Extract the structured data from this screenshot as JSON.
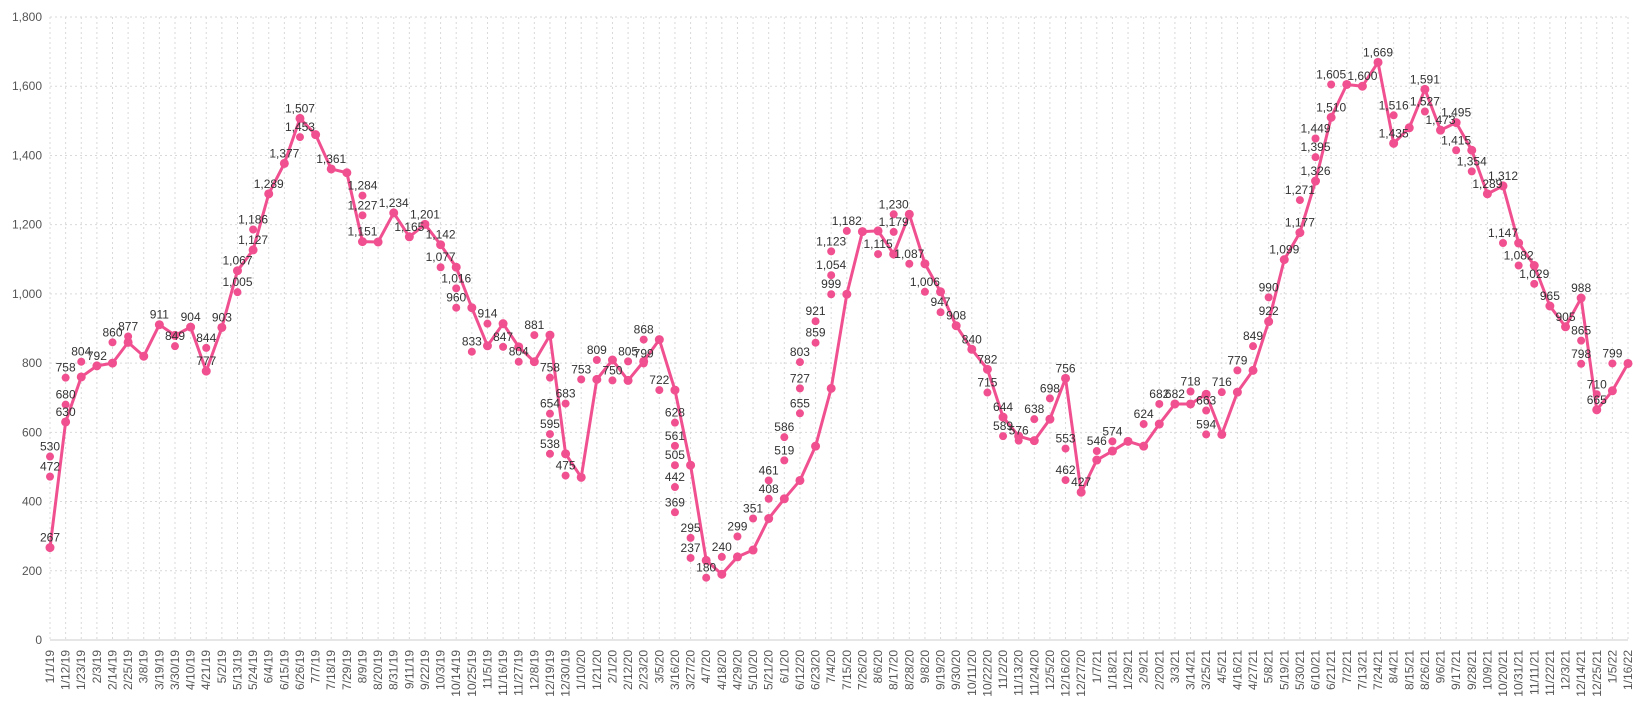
{
  "colors": {
    "series": "#f0508f",
    "grid": "#d9d9d9",
    "axis": "#cccccc",
    "text": "#444444"
  },
  "chart_data": {
    "type": "line",
    "title": "",
    "xlabel": "",
    "ylabel": "",
    "ylim": [
      0,
      1800
    ],
    "yticks": [
      0,
      200,
      400,
      600,
      800,
      1000,
      1200,
      1400,
      1600,
      1800
    ],
    "grid": true,
    "x": [
      "1/1/19",
      "1/12/19",
      "1/23/19",
      "2/3/19",
      "2/14/19",
      "2/25/19",
      "3/8/19",
      "3/19/19",
      "3/30/19",
      "4/10/19",
      "4/21/19",
      "5/2/19",
      "5/13/19",
      "5/24/19",
      "6/4/19",
      "6/15/19",
      "6/26/19",
      "7/7/19",
      "7/18/19",
      "7/29/19",
      "8/9/19",
      "8/20/19",
      "8/31/19",
      "9/11/19",
      "9/22/19",
      "10/3/19",
      "10/14/19",
      "10/25/19",
      "11/5/19",
      "11/16/19",
      "11/27/19",
      "12/8/19",
      "12/19/19",
      "12/30/19",
      "1/10/20",
      "1/21/20",
      "2/1/20",
      "2/12/20",
      "2/23/20",
      "3/5/20",
      "3/16/20",
      "3/27/20",
      "4/7/20",
      "4/18/20",
      "4/29/20",
      "5/10/20",
      "5/21/20",
      "6/1/20",
      "6/12/20",
      "6/23/20",
      "7/4/20",
      "7/15/20",
      "7/26/20",
      "8/6/20",
      "8/17/20",
      "8/28/20",
      "9/8/20",
      "9/19/20",
      "9/30/20",
      "10/11/20",
      "10/22/20",
      "11/2/20",
      "11/13/20",
      "11/24/20",
      "12/5/20",
      "12/16/20",
      "12/27/20",
      "1/7/21",
      "1/18/21",
      "1/29/21",
      "2/9/21",
      "2/20/21",
      "3/3/21",
      "3/14/21",
      "3/25/21",
      "4/5/21",
      "4/16/21",
      "4/27/21",
      "5/8/21",
      "5/19/21",
      "5/30/21",
      "6/10/21",
      "6/21/21",
      "7/2/21",
      "7/13/21",
      "7/24/21",
      "8/4/21",
      "8/15/21",
      "8/26/21",
      "9/6/21",
      "9/17/21",
      "9/28/21",
      "10/9/21",
      "10/20/21",
      "10/31/21",
      "11/11/21",
      "11/22/21",
      "12/3/21",
      "12/14/21",
      "12/25/21",
      "1/5/22",
      "1/16/22"
    ],
    "series": [
      {
        "values": [
          267,
          630,
          760,
          792,
          800,
          860,
          820,
          911,
          880,
          904,
          777,
          903,
          1067,
          1127,
          1289,
          1377,
          1507,
          1460,
          1361,
          1350,
          1151,
          1150,
          1234,
          1165,
          1201,
          1142,
          1077,
          960,
          850,
          914,
          847,
          804,
          881,
          538,
          470,
          753,
          809,
          750,
          805,
          868,
          722,
          505,
          230,
          190,
          240,
          260,
          351,
          408,
          461,
          560,
          727,
          999,
          1180,
          1182,
          1115,
          1230,
          1087,
          1006,
          908,
          840,
          782,
          644,
          589,
          576,
          638,
          756,
          427,
          520,
          546,
          574,
          560,
          624,
          682,
          682,
          710,
          594,
          716,
          779,
          920,
          1099,
          1177,
          1326,
          1510,
          1605,
          1600,
          1669,
          1435,
          1480,
          1591,
          1473,
          1495,
          1415,
          1289,
          1312,
          1147,
          1082,
          965,
          905,
          988,
          665,
          720,
          799
        ]
      }
    ],
    "data_labels": [
      {
        "x": "1/1/19",
        "y": 267,
        "text": "267"
      },
      {
        "x": "1/1/19",
        "y": 472,
        "text": "472"
      },
      {
        "x": "1/1/19",
        "y": 530,
        "text": "530"
      },
      {
        "x": "1/12/19",
        "y": 630,
        "text": "630"
      },
      {
        "x": "1/12/19",
        "y": 680,
        "text": "680"
      },
      {
        "x": "1/12/19",
        "y": 758,
        "text": "758"
      },
      {
        "x": "1/23/19",
        "y": 804,
        "text": "804"
      },
      {
        "x": "2/3/19",
        "y": 792,
        "text": "792"
      },
      {
        "x": "2/14/19",
        "y": 860,
        "text": "860"
      },
      {
        "x": "2/25/19",
        "y": 877,
        "text": "877"
      },
      {
        "x": "3/19/19",
        "y": 911,
        "text": "911"
      },
      {
        "x": "3/30/19",
        "y": 849,
        "text": "849"
      },
      {
        "x": "4/10/19",
        "y": 904,
        "text": "904"
      },
      {
        "x": "4/21/19",
        "y": 844,
        "text": "844"
      },
      {
        "x": "4/21/19",
        "y": 777,
        "text": "777"
      },
      {
        "x": "5/2/19",
        "y": 903,
        "text": "903"
      },
      {
        "x": "5/13/19",
        "y": 1005,
        "text": "1,005"
      },
      {
        "x": "5/13/19",
        "y": 1067,
        "text": "1,067"
      },
      {
        "x": "5/24/19",
        "y": 1127,
        "text": "1,127"
      },
      {
        "x": "5/24/19",
        "y": 1186,
        "text": "1,186"
      },
      {
        "x": "6/4/19",
        "y": 1289,
        "text": "1,289"
      },
      {
        "x": "6/15/19",
        "y": 1377,
        "text": "1,377"
      },
      {
        "x": "6/26/19",
        "y": 1453,
        "text": "1,453"
      },
      {
        "x": "6/26/19",
        "y": 1507,
        "text": "1,507"
      },
      {
        "x": "7/18/19",
        "y": 1361,
        "text": "1,361"
      },
      {
        "x": "8/9/19",
        "y": 1284,
        "text": "1,284"
      },
      {
        "x": "8/9/19",
        "y": 1227,
        "text": "1,227"
      },
      {
        "x": "8/9/19",
        "y": 1151,
        "text": "1,151"
      },
      {
        "x": "8/31/19",
        "y": 1234,
        "text": "1,234"
      },
      {
        "x": "9/11/19",
        "y": 1165,
        "text": "1,165"
      },
      {
        "x": "9/22/19",
        "y": 1201,
        "text": "1,201"
      },
      {
        "x": "10/3/19",
        "y": 1142,
        "text": "1,142"
      },
      {
        "x": "10/3/19",
        "y": 1077,
        "text": "1,077"
      },
      {
        "x": "10/14/19",
        "y": 1016,
        "text": "1,016"
      },
      {
        "x": "10/14/19",
        "y": 960,
        "text": "960"
      },
      {
        "x": "10/25/19",
        "y": 833,
        "text": "833"
      },
      {
        "x": "11/5/19",
        "y": 914,
        "text": "914"
      },
      {
        "x": "11/16/19",
        "y": 847,
        "text": "847"
      },
      {
        "x": "11/27/19",
        "y": 804,
        "text": "804"
      },
      {
        "x": "12/8/19",
        "y": 881,
        "text": "881"
      },
      {
        "x": "12/19/19",
        "y": 758,
        "text": "758"
      },
      {
        "x": "12/19/19",
        "y": 654,
        "text": "654"
      },
      {
        "x": "12/19/19",
        "y": 595,
        "text": "595"
      },
      {
        "x": "12/19/19",
        "y": 538,
        "text": "538"
      },
      {
        "x": "12/30/19",
        "y": 475,
        "text": "475"
      },
      {
        "x": "12/30/19",
        "y": 683,
        "text": "683"
      },
      {
        "x": "1/10/20",
        "y": 753,
        "text": "753"
      },
      {
        "x": "1/21/20",
        "y": 809,
        "text": "809"
      },
      {
        "x": "2/1/20",
        "y": 750,
        "text": "750"
      },
      {
        "x": "2/12/20",
        "y": 805,
        "text": "805"
      },
      {
        "x": "2/23/20",
        "y": 868,
        "text": "868"
      },
      {
        "x": "2/23/20",
        "y": 799,
        "text": "799"
      },
      {
        "x": "3/5/20",
        "y": 722,
        "text": "722"
      },
      {
        "x": "3/16/20",
        "y": 628,
        "text": "628"
      },
      {
        "x": "3/16/20",
        "y": 561,
        "text": "561"
      },
      {
        "x": "3/16/20",
        "y": 505,
        "text": "505"
      },
      {
        "x": "3/16/20",
        "y": 442,
        "text": "442"
      },
      {
        "x": "3/16/20",
        "y": 369,
        "text": "369"
      },
      {
        "x": "3/27/20",
        "y": 295,
        "text": "295"
      },
      {
        "x": "3/27/20",
        "y": 237,
        "text": "237"
      },
      {
        "x": "4/7/20",
        "y": 180,
        "text": "180"
      },
      {
        "x": "4/18/20",
        "y": 240,
        "text": "240"
      },
      {
        "x": "4/29/20",
        "y": 299,
        "text": "299"
      },
      {
        "x": "5/10/20",
        "y": 351,
        "text": "351"
      },
      {
        "x": "5/21/20",
        "y": 408,
        "text": "408"
      },
      {
        "x": "5/21/20",
        "y": 461,
        "text": "461"
      },
      {
        "x": "6/1/20",
        "y": 519,
        "text": "519"
      },
      {
        "x": "6/1/20",
        "y": 586,
        "text": "586"
      },
      {
        "x": "6/12/20",
        "y": 655,
        "text": "655"
      },
      {
        "x": "6/12/20",
        "y": 727,
        "text": "727"
      },
      {
        "x": "6/12/20",
        "y": 803,
        "text": "803"
      },
      {
        "x": "6/23/20",
        "y": 859,
        "text": "859"
      },
      {
        "x": "6/23/20",
        "y": 921,
        "text": "921"
      },
      {
        "x": "7/4/20",
        "y": 999,
        "text": "999"
      },
      {
        "x": "7/4/20",
        "y": 1054,
        "text": "1,054"
      },
      {
        "x": "7/4/20",
        "y": 1123,
        "text": "1,123"
      },
      {
        "x": "7/15/20",
        "y": 1182,
        "text": "1,182"
      },
      {
        "x": "8/6/20",
        "y": 1115,
        "text": "1,115"
      },
      {
        "x": "8/17/20",
        "y": 1179,
        "text": "1,179"
      },
      {
        "x": "8/17/20",
        "y": 1230,
        "text": "1,230"
      },
      {
        "x": "8/28/20",
        "y": 1087,
        "text": "1,087"
      },
      {
        "x": "9/8/20",
        "y": 1006,
        "text": "1,006"
      },
      {
        "x": "9/19/20",
        "y": 947,
        "text": "947"
      },
      {
        "x": "9/30/20",
        "y": 908,
        "text": "908"
      },
      {
        "x": "10/11/20",
        "y": 840,
        "text": "840"
      },
      {
        "x": "10/22/20",
        "y": 782,
        "text": "782"
      },
      {
        "x": "10/22/20",
        "y": 715,
        "text": "715"
      },
      {
        "x": "11/2/20",
        "y": 644,
        "text": "644"
      },
      {
        "x": "11/2/20",
        "y": 589,
        "text": "589"
      },
      {
        "x": "11/13/20",
        "y": 576,
        "text": "576"
      },
      {
        "x": "11/24/20",
        "y": 638,
        "text": "638"
      },
      {
        "x": "12/5/20",
        "y": 698,
        "text": "698"
      },
      {
        "x": "12/16/20",
        "y": 756,
        "text": "756"
      },
      {
        "x": "12/16/20",
        "y": 553,
        "text": "553"
      },
      {
        "x": "12/16/20",
        "y": 462,
        "text": "462"
      },
      {
        "x": "12/27/20",
        "y": 427,
        "text": "427"
      },
      {
        "x": "1/7/21",
        "y": 546,
        "text": "546"
      },
      {
        "x": "1/18/21",
        "y": 574,
        "text": "574"
      },
      {
        "x": "2/9/21",
        "y": 624,
        "text": "624"
      },
      {
        "x": "2/20/21",
        "y": 682,
        "text": "682"
      },
      {
        "x": "3/3/21",
        "y": 682,
        "text": "682"
      },
      {
        "x": "3/14/21",
        "y": 718,
        "text": "718"
      },
      {
        "x": "3/25/21",
        "y": 663,
        "text": "663"
      },
      {
        "x": "3/25/21",
        "y": 594,
        "text": "594"
      },
      {
        "x": "4/5/21",
        "y": 716,
        "text": "716"
      },
      {
        "x": "4/16/21",
        "y": 779,
        "text": "779"
      },
      {
        "x": "4/27/21",
        "y": 849,
        "text": "849"
      },
      {
        "x": "5/8/21",
        "y": 922,
        "text": "922"
      },
      {
        "x": "5/8/21",
        "y": 990,
        "text": "990"
      },
      {
        "x": "5/19/21",
        "y": 1099,
        "text": "1,099"
      },
      {
        "x": "5/30/21",
        "y": 1177,
        "text": "1,177"
      },
      {
        "x": "5/30/21",
        "y": 1271,
        "text": "1,271"
      },
      {
        "x": "6/10/21",
        "y": 1326,
        "text": "1,326"
      },
      {
        "x": "6/10/21",
        "y": 1395,
        "text": "1,395"
      },
      {
        "x": "6/10/21",
        "y": 1449,
        "text": "1,449"
      },
      {
        "x": "6/21/21",
        "y": 1510,
        "text": "1,510"
      },
      {
        "x": "6/21/21",
        "y": 1605,
        "text": "1,605"
      },
      {
        "x": "7/13/21",
        "y": 1600,
        "text": "1,600"
      },
      {
        "x": "7/24/21",
        "y": 1669,
        "text": "1,669"
      },
      {
        "x": "8/4/21",
        "y": 1516,
        "text": "1,516"
      },
      {
        "x": "8/4/21",
        "y": 1435,
        "text": "1,435"
      },
      {
        "x": "8/26/21",
        "y": 1591,
        "text": "1,591"
      },
      {
        "x": "8/26/21",
        "y": 1527,
        "text": "1,527"
      },
      {
        "x": "9/6/21",
        "y": 1473,
        "text": "1,473"
      },
      {
        "x": "9/17/21",
        "y": 1495,
        "text": "1,495"
      },
      {
        "x": "9/17/21",
        "y": 1415,
        "text": "1,415"
      },
      {
        "x": "9/28/21",
        "y": 1354,
        "text": "1,354"
      },
      {
        "x": "10/9/21",
        "y": 1289,
        "text": "1,289"
      },
      {
        "x": "10/20/21",
        "y": 1312,
        "text": "1,312"
      },
      {
        "x": "10/20/21",
        "y": 1147,
        "text": "1,147"
      },
      {
        "x": "10/31/21",
        "y": 1082,
        "text": "1,082"
      },
      {
        "x": "11/11/21",
        "y": 1029,
        "text": "1,029"
      },
      {
        "x": "11/22/21",
        "y": 965,
        "text": "965"
      },
      {
        "x": "12/3/21",
        "y": 905,
        "text": "905"
      },
      {
        "x": "12/14/21",
        "y": 988,
        "text": "988"
      },
      {
        "x": "12/14/21",
        "y": 865,
        "text": "865"
      },
      {
        "x": "12/14/21",
        "y": 798,
        "text": "798"
      },
      {
        "x": "12/25/21",
        "y": 710,
        "text": "710"
      },
      {
        "x": "12/25/21",
        "y": 665,
        "text": "665"
      },
      {
        "x": "1/5/22",
        "y": 799,
        "text": "799"
      }
    ]
  }
}
